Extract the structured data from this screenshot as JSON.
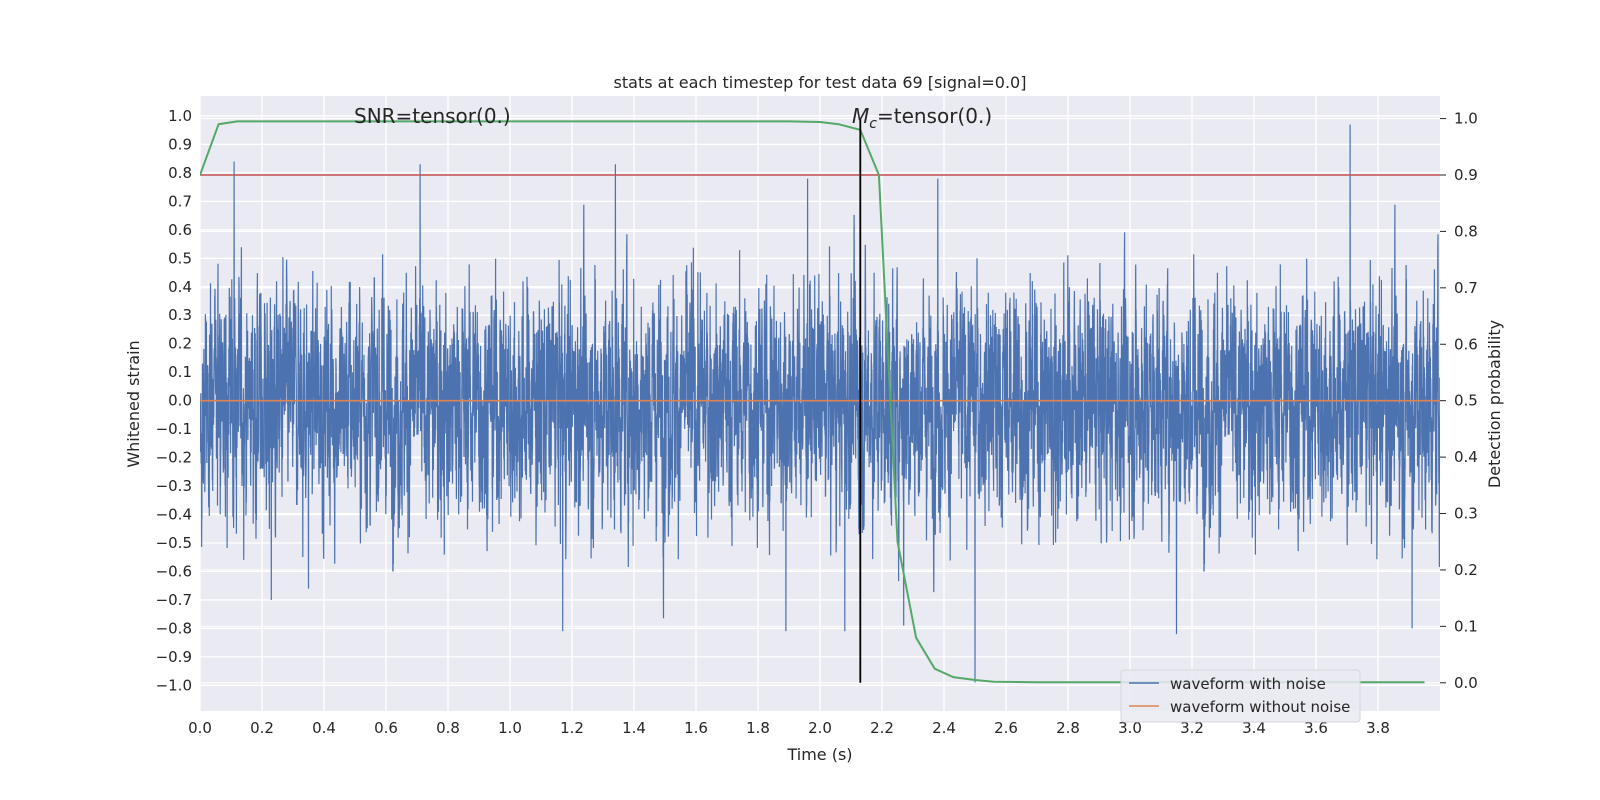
{
  "chart_data": {
    "type": "line",
    "title": "stats at each timestep for test data 69 [signal=0.0]",
    "xlabel": "Time (s)",
    "ylabel_left": "Whitened strain",
    "ylabel_right": "Detection probability",
    "xlim": [
      0.0,
      4.0
    ],
    "ylim_left": [
      -1.09,
      1.07
    ],
    "ylim_right": [
      -0.05,
      1.04
    ],
    "xticks": [
      "0.0",
      "0.2",
      "0.4",
      "0.6",
      "0.8",
      "1.0",
      "1.2",
      "1.4",
      "1.6",
      "1.8",
      "2.0",
      "2.2",
      "2.4",
      "2.6",
      "2.8",
      "3.0",
      "3.2",
      "3.4",
      "3.6",
      "3.8"
    ],
    "yticks_left": [
      "1.0",
      "0.9",
      "0.8",
      "0.7",
      "0.6",
      "0.5",
      "0.4",
      "0.3",
      "0.2",
      "0.1",
      "0.0",
      "−0.1",
      "−0.2",
      "−0.3",
      "−0.4",
      "−0.5",
      "−0.6",
      "−0.7",
      "−0.8",
      "−0.9",
      "−1.0"
    ],
    "yticks_right": [
      "1.0",
      "0.9",
      "0.8",
      "0.7",
      "0.6",
      "0.5",
      "0.4",
      "0.3",
      "0.2",
      "0.1",
      "0.0"
    ],
    "grid": true,
    "legend_location": "lower-right",
    "annotations": {
      "snr": "SNR=tensor(0.)",
      "mc_symbol": "M",
      "mc_sub": "c",
      "mc_rest": "=tensor(0.)"
    },
    "colors": {
      "noise": "#4c72b0",
      "clean": "#dd8452",
      "probability": "#55a868",
      "threshold": "#c44e52",
      "marker": "#000000",
      "background": "#eaeaf2"
    },
    "threshold_probability": 0.9,
    "marker_time": 2.13,
    "series": [
      {
        "name": "waveform with noise",
        "noise_std": 0.2,
        "spikes": [
          [
            0.11,
            0.84
          ],
          [
            0.71,
            0.83
          ],
          [
            1.34,
            0.83
          ],
          [
            1.96,
            0.78
          ],
          [
            2.38,
            0.78
          ],
          [
            3.71,
            0.97
          ],
          [
            1.17,
            -0.81
          ],
          [
            2.08,
            -0.81
          ],
          [
            2.5,
            -0.99
          ],
          [
            3.15,
            -0.82
          ],
          [
            3.91,
            -0.8
          ],
          [
            2.27,
            -0.79
          ],
          [
            1.89,
            -0.81
          ],
          [
            0.35,
            -0.66
          ],
          [
            0.23,
            -0.7
          ]
        ]
      },
      {
        "name": "waveform without noise",
        "value": 0.0
      },
      {
        "name": "Detection probability",
        "t": [
          0.0,
          0.06,
          0.12,
          0.2,
          0.4,
          0.8,
          1.2,
          1.6,
          1.9,
          2.0,
          2.06,
          2.13,
          2.19,
          2.25,
          2.31,
          2.37,
          2.43,
          2.5,
          2.56,
          2.7,
          3.0,
          3.5,
          3.95
        ],
        "p": [
          0.9,
          0.99,
          0.995,
          0.995,
          0.995,
          0.995,
          0.995,
          0.995,
          0.995,
          0.994,
          0.99,
          0.98,
          0.9,
          0.25,
          0.08,
          0.025,
          0.01,
          0.005,
          0.002,
          0.001,
          0.001,
          0.001,
          0.001
        ]
      }
    ]
  }
}
